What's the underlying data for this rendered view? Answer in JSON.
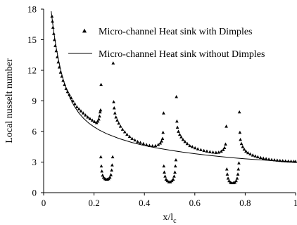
{
  "chart_data": {
    "type": "scatter",
    "title": "",
    "xlabel": "x/l",
    "xlabel_subscript": "c",
    "ylabel": "Local nusselt number",
    "xlim": [
      0,
      1
    ],
    "ylim": [
      0,
      18
    ],
    "x_ticks": [
      "0",
      "0.2",
      "0.4",
      "0.6",
      "0.8",
      "1"
    ],
    "y_ticks": [
      "0",
      "3",
      "6",
      "9",
      "12",
      "15",
      "18"
    ],
    "grid": false,
    "legend_position": "top-right",
    "series": [
      {
        "name": "Micro-channel Heat sink with Dimples",
        "style": "triangle-markers",
        "color": "#000000",
        "values": [
          [
            0.033,
            17.3
          ],
          [
            0.035,
            16.8
          ],
          [
            0.037,
            16.2
          ],
          [
            0.04,
            15.6
          ],
          [
            0.043,
            15.0
          ],
          [
            0.046,
            14.4
          ],
          [
            0.05,
            13.9
          ],
          [
            0.054,
            13.3
          ],
          [
            0.058,
            12.8
          ],
          [
            0.062,
            12.3
          ],
          [
            0.067,
            11.8
          ],
          [
            0.072,
            11.4
          ],
          [
            0.077,
            11.0
          ],
          [
            0.083,
            10.6
          ],
          [
            0.089,
            10.2
          ],
          [
            0.095,
            9.9
          ],
          [
            0.102,
            9.6
          ],
          [
            0.109,
            9.3
          ],
          [
            0.116,
            9.0
          ],
          [
            0.124,
            8.7
          ],
          [
            0.132,
            8.4
          ],
          [
            0.14,
            8.2
          ],
          [
            0.148,
            8.0
          ],
          [
            0.157,
            7.8
          ],
          [
            0.166,
            7.6
          ],
          [
            0.175,
            7.4
          ],
          [
            0.184,
            7.25
          ],
          [
            0.193,
            7.1
          ],
          [
            0.202,
            6.95
          ],
          [
            0.21,
            6.85
          ],
          [
            0.215,
            7.0
          ],
          [
            0.219,
            7.2
          ],
          [
            0.222,
            7.5
          ],
          [
            0.224,
            7.9
          ],
          [
            0.226,
            8.1
          ],
          [
            0.228,
            10.6
          ],
          [
            0.227,
            3.5
          ],
          [
            0.229,
            2.6
          ],
          [
            0.231,
            2.1
          ],
          [
            0.234,
            1.7
          ],
          [
            0.238,
            1.5
          ],
          [
            0.243,
            1.35
          ],
          [
            0.248,
            1.3
          ],
          [
            0.253,
            1.3
          ],
          [
            0.258,
            1.35
          ],
          [
            0.263,
            1.5
          ],
          [
            0.267,
            1.75
          ],
          [
            0.27,
            2.2
          ],
          [
            0.272,
            2.7
          ],
          [
            0.274,
            3.5
          ],
          [
            0.276,
            12.7
          ],
          [
            0.278,
            8.9
          ],
          [
            0.28,
            8.3
          ],
          [
            0.283,
            7.8
          ],
          [
            0.287,
            7.4
          ],
          [
            0.292,
            7.1
          ],
          [
            0.298,
            6.8
          ],
          [
            0.305,
            6.5
          ],
          [
            0.313,
            6.2
          ],
          [
            0.322,
            5.95
          ],
          [
            0.331,
            5.7
          ],
          [
            0.341,
            5.5
          ],
          [
            0.351,
            5.3
          ],
          [
            0.362,
            5.15
          ],
          [
            0.373,
            5.0
          ],
          [
            0.384,
            4.9
          ],
          [
            0.396,
            4.8
          ],
          [
            0.408,
            4.7
          ],
          [
            0.42,
            4.62
          ],
          [
            0.432,
            4.58
          ],
          [
            0.444,
            4.6
          ],
          [
            0.455,
            4.7
          ],
          [
            0.463,
            4.85
          ],
          [
            0.468,
            5.05
          ],
          [
            0.472,
            5.3
          ],
          [
            0.474,
            5.9
          ],
          [
            0.476,
            7.8
          ],
          [
            0.477,
            2.6
          ],
          [
            0.479,
            2.0
          ],
          [
            0.482,
            1.6
          ],
          [
            0.486,
            1.3
          ],
          [
            0.491,
            1.15
          ],
          [
            0.497,
            1.05
          ],
          [
            0.503,
            1.05
          ],
          [
            0.509,
            1.15
          ],
          [
            0.514,
            1.3
          ],
          [
            0.518,
            1.6
          ],
          [
            0.521,
            2.0
          ],
          [
            0.523,
            2.6
          ],
          [
            0.525,
            3.2
          ],
          [
            0.527,
            9.4
          ],
          [
            0.529,
            7.0
          ],
          [
            0.531,
            6.4
          ],
          [
            0.535,
            6.0
          ],
          [
            0.54,
            5.7
          ],
          [
            0.546,
            5.45
          ],
          [
            0.553,
            5.2
          ],
          [
            0.561,
            5.0
          ],
          [
            0.57,
            4.8
          ],
          [
            0.58,
            4.6
          ],
          [
            0.59,
            4.5
          ],
          [
            0.601,
            4.38
          ],
          [
            0.612,
            4.28
          ],
          [
            0.624,
            4.2
          ],
          [
            0.636,
            4.12
          ],
          [
            0.648,
            4.06
          ],
          [
            0.66,
            4.0
          ],
          [
            0.672,
            3.96
          ],
          [
            0.684,
            3.93
          ],
          [
            0.695,
            3.95
          ],
          [
            0.705,
            4.05
          ],
          [
            0.713,
            4.2
          ],
          [
            0.718,
            4.4
          ],
          [
            0.722,
            4.75
          ],
          [
            0.725,
            6.5
          ],
          [
            0.727,
            2.3
          ],
          [
            0.729,
            1.8
          ],
          [
            0.732,
            1.4
          ],
          [
            0.736,
            1.15
          ],
          [
            0.741,
            1.0
          ],
          [
            0.747,
            0.95
          ],
          [
            0.753,
            0.95
          ],
          [
            0.759,
            1.0
          ],
          [
            0.764,
            1.15
          ],
          [
            0.768,
            1.4
          ],
          [
            0.771,
            1.8
          ],
          [
            0.773,
            2.3
          ],
          [
            0.775,
            2.9
          ],
          [
            0.777,
            7.9
          ],
          [
            0.779,
            5.9
          ],
          [
            0.781,
            5.2
          ],
          [
            0.785,
            4.8
          ],
          [
            0.79,
            4.5
          ],
          [
            0.796,
            4.25
          ],
          [
            0.803,
            4.05
          ],
          [
            0.811,
            3.9
          ],
          [
            0.82,
            3.78
          ],
          [
            0.83,
            3.67
          ],
          [
            0.84,
            3.58
          ],
          [
            0.85,
            3.5
          ],
          [
            0.861,
            3.43
          ],
          [
            0.872,
            3.37
          ],
          [
            0.883,
            3.32
          ],
          [
            0.894,
            3.27
          ],
          [
            0.905,
            3.23
          ],
          [
            0.916,
            3.2
          ],
          [
            0.927,
            3.17
          ],
          [
            0.938,
            3.14
          ],
          [
            0.949,
            3.12
          ],
          [
            0.96,
            3.1
          ],
          [
            0.971,
            3.08
          ],
          [
            0.982,
            3.07
          ],
          [
            0.993,
            3.06
          ],
          [
            1.0,
            3.05
          ]
        ]
      },
      {
        "name": "Micro-channel Heat sink without Dimples",
        "style": "line",
        "color": "#000000",
        "values": [
          [
            0.03,
            17.8
          ],
          [
            0.04,
            15.8
          ],
          [
            0.05,
            14.2
          ],
          [
            0.06,
            12.9
          ],
          [
            0.07,
            11.8
          ],
          [
            0.08,
            10.9
          ],
          [
            0.09,
            10.2
          ],
          [
            0.1,
            9.55
          ],
          [
            0.12,
            8.55
          ],
          [
            0.14,
            7.8
          ],
          [
            0.16,
            7.25
          ],
          [
            0.18,
            6.8
          ],
          [
            0.2,
            6.45
          ],
          [
            0.22,
            6.15
          ],
          [
            0.25,
            5.78
          ],
          [
            0.3,
            5.3
          ],
          [
            0.35,
            4.92
          ],
          [
            0.4,
            4.62
          ],
          [
            0.45,
            4.38
          ],
          [
            0.5,
            4.17
          ],
          [
            0.55,
            3.98
          ],
          [
            0.6,
            3.82
          ],
          [
            0.65,
            3.67
          ],
          [
            0.7,
            3.54
          ],
          [
            0.75,
            3.42
          ],
          [
            0.8,
            3.32
          ],
          [
            0.85,
            3.23
          ],
          [
            0.9,
            3.15
          ],
          [
            0.95,
            3.08
          ],
          [
            1.0,
            3.02
          ]
        ]
      }
    ]
  }
}
